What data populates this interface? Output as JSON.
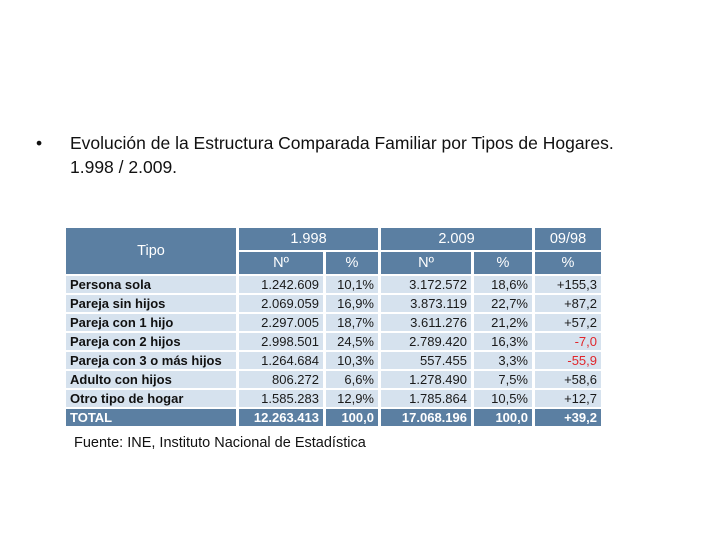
{
  "heading": {
    "bullet": "•",
    "line1": "Evolución de la Estructura Comparada Familiar por Tipos de Hogares.",
    "line2": "1.998 / 2.009."
  },
  "table": {
    "header": {
      "tipo": "Tipo",
      "year1": "1.998",
      "year2": "2.009",
      "change": "09/98",
      "n1": "Nº",
      "pct1": "%",
      "n2": "Nº",
      "pct2": "%",
      "pct_change": "%"
    },
    "rows": [
      {
        "label": "Persona sola",
        "n1": "1.242.609",
        "p1": "10,1%",
        "n2": "3.172.572",
        "p2": "18,6%",
        "chg": "+155,3"
      },
      {
        "label": "Pareja sin hijos",
        "n1": "2.069.059",
        "p1": "16,9%",
        "n2": "3.873.119",
        "p2": "22,7%",
        "chg": "+87,2"
      },
      {
        "label": "Pareja con 1 hijo",
        "n1": "2.297.005",
        "p1": "18,7%",
        "n2": "3.611.276",
        "p2": "21,2%",
        "chg": "+57,2"
      },
      {
        "label": "Pareja con 2 hijos",
        "n1": "2.998.501",
        "p1": "24,5%",
        "n2": "2.789.420",
        "p2": "16,3%",
        "chg": "-7,0"
      },
      {
        "label": "Pareja con 3 o más hijos",
        "n1": "1.264.684",
        "p1": "10,3%",
        "n2": "557.455",
        "p2": "3,3%",
        "chg": "-55,9"
      },
      {
        "label": "Adulto con hijos",
        "n1": "806.272",
        "p1": "6,6%",
        "n2": "1.278.490",
        "p2": "7,5%",
        "chg": "+58,6"
      },
      {
        "label": "Otro tipo de hogar",
        "n1": "1.585.283",
        "p1": "12,9%",
        "n2": "1.785.864",
        "p2": "10,5%",
        "chg": "+12,7"
      }
    ],
    "total": {
      "label": "TOTAL",
      "n1": "12.263.413",
      "p1": "100,0",
      "n2": "17.068.196",
      "p2": "100,0",
      "chg": "+39,2"
    }
  },
  "source": "Fuente: INE, Instituto Nacional de Estadística",
  "colors": {
    "header_bg": "#5b7fa2",
    "cell_bg": "#d6e2ee",
    "negative": "#e0262b"
  }
}
